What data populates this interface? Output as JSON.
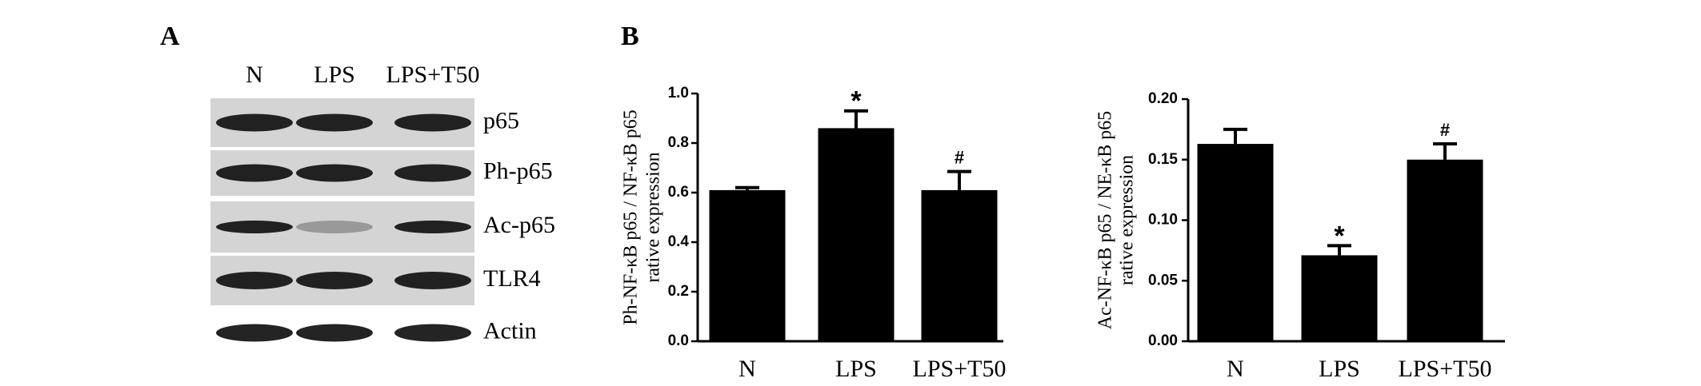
{
  "panel_labels": [
    "A",
    "B"
  ],
  "blot": {
    "columns": [
      "N",
      "LPS",
      "LPS+T50"
    ],
    "rows": [
      "p65",
      "Ph-p65",
      "Ac-p65",
      "TLR4",
      "Actin"
    ]
  },
  "chart_data": [
    {
      "type": "bar",
      "ylabel": [
        "Ph-NF-κB p65 / NF-κB p65",
        "rative expression"
      ],
      "categories": [
        "N",
        "LPS",
        "LPS+T50"
      ],
      "values": [
        0.61,
        0.86,
        0.61
      ],
      "errors": [
        0.01,
        0.07,
        0.075
      ],
      "annotations": [
        null,
        "*",
        "#"
      ],
      "color": "#000000",
      "ylim": [
        0,
        1.0
      ],
      "yticks": [
        {
          "value": 0,
          "label": "0.0"
        },
        0.2,
        0.4,
        0.6,
        0.8,
        {
          "value": 1.0,
          "label": "1.0"
        }
      ]
    },
    {
      "type": "bar",
      "ylabel": [
        "Ac-NF-κB p65 / NE-κB p65",
        "rative expression"
      ],
      "categories": [
        "N",
        "LPS",
        "LPS+T50"
      ],
      "values": [
        0.163,
        0.071,
        0.15
      ],
      "errors": [
        0.012,
        0.008,
        0.013
      ],
      "annotations": [
        null,
        "*",
        "#"
      ],
      "color": "#000000",
      "ylim": [
        0,
        0.2
      ],
      "yticks": [
        {
          "value": 0,
          "label": "0.00"
        },
        {
          "value": 0.05,
          "label": "0.05"
        },
        {
          "value": 0.1,
          "label": "0.10"
        },
        {
          "value": 0.15,
          "label": "0.15"
        },
        {
          "value": 0.2,
          "label": "0.20"
        }
      ]
    }
  ]
}
